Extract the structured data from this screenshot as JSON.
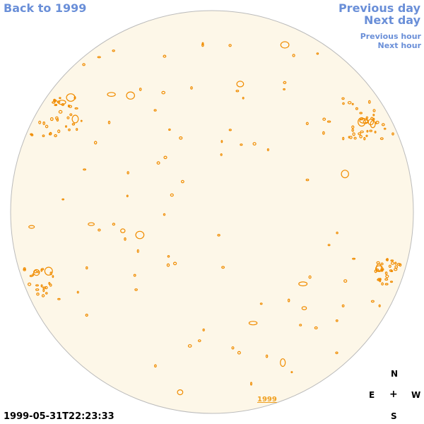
{
  "nav": {
    "back": "Back to 1999",
    "previous_day": "Previous day",
    "next_day": "Next day",
    "previous_hour": "Previous hour",
    "next_hour": "Next hour"
  },
  "timestamp": "1999-05-31T22:23:33",
  "year_link": "1999",
  "compass": {
    "north": "N",
    "east": "E",
    "center": "+",
    "west": "W",
    "south": "S"
  },
  "colors": {
    "disk_fill": "#fdf7e8",
    "disk_stroke": "#bbbbbb",
    "feature": "#f08c00",
    "nav": "#6a8fd8"
  }
}
